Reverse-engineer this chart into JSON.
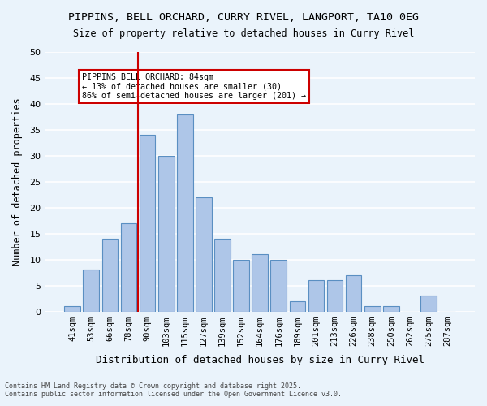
{
  "title_line1": "PIPPINS, BELL ORCHARD, CURRY RIVEL, LANGPORT, TA10 0EG",
  "title_line2": "Size of property relative to detached houses in Curry Rivel",
  "xlabel": "Distribution of detached houses by size in Curry Rivel",
  "ylabel": "Number of detached properties",
  "categories": [
    "41sqm",
    "53sqm",
    "66sqm",
    "78sqm",
    "90sqm",
    "103sqm",
    "115sqm",
    "127sqm",
    "139sqm",
    "152sqm",
    "164sqm",
    "176sqm",
    "189sqm",
    "201sqm",
    "213sqm",
    "226sqm",
    "238sqm",
    "250sqm",
    "262sqm",
    "275sqm",
    "287sqm"
  ],
  "values": [
    1,
    8,
    14,
    17,
    34,
    30,
    38,
    22,
    14,
    10,
    11,
    10,
    2,
    6,
    6,
    7,
    1,
    1,
    0,
    3,
    0
  ],
  "bar_color": "#aec6e8",
  "bar_edgecolor": "#5a8fc2",
  "background_color": "#eaf3fb",
  "grid_color": "#ffffff",
  "ylim": [
    0,
    50
  ],
  "yticks": [
    0,
    5,
    10,
    15,
    20,
    25,
    30,
    35,
    40,
    45,
    50
  ],
  "annotation_text": "PIPPINS BELL ORCHARD: 84sqm\n← 13% of detached houses are smaller (30)\n86% of semi-detached houses are larger (201) →",
  "annotation_box_color": "#ffffff",
  "annotation_box_edgecolor": "#cc0000",
  "vline_x_index": 3.5,
  "vline_color": "#cc0000",
  "footer_line1": "Contains HM Land Registry data © Crown copyright and database right 2025.",
  "footer_line2": "Contains public sector information licensed under the Open Government Licence v3.0."
}
